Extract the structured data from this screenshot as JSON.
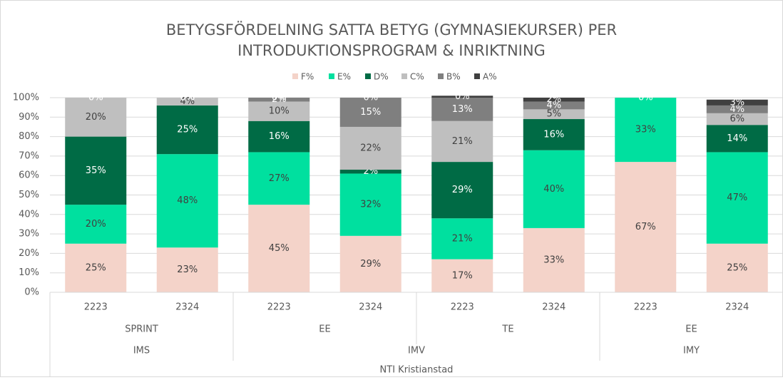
{
  "chart_data": {
    "type": "stacked_bar",
    "title": [
      "BETYGSFÖRDELNING SATTA BETYG (GYMNASIEKURSER) PER",
      "INTRODUKTIONSPROGRAM & INRIKTNING"
    ],
    "categories": [
      "2223",
      "2324",
      "2223",
      "2324",
      "2223",
      "2324",
      "2223",
      "2324"
    ],
    "category_levels": [
      [
        {
          "label": "SPRINT",
          "span": 2
        },
        {
          "label": "EE",
          "span": 2
        },
        {
          "label": "TE",
          "span": 2
        },
        {
          "label": "EE",
          "span": 2
        }
      ],
      [
        {
          "label": "IMS",
          "span": 2
        },
        {
          "label": "IMV",
          "span": 4
        },
        {
          "label": "IMY",
          "span": 2
        }
      ],
      [
        {
          "label": "NTI Kristianstad",
          "span": 8
        }
      ]
    ],
    "series": [
      {
        "name": "F%",
        "color": "#f4d3c9",
        "label_color": "#404040",
        "values": [
          25,
          23,
          45,
          29,
          17,
          33,
          67,
          25
        ],
        "value_labels": [
          "25%",
          "23%",
          "45%",
          "29%",
          "17%",
          "33%",
          "67%",
          "25%"
        ]
      },
      {
        "name": "E%",
        "color": "#00e09f",
        "label_color": "#404040",
        "values": [
          20,
          48,
          27,
          32,
          21,
          40,
          33,
          47
        ],
        "value_labels": [
          "20%",
          "48%",
          "27%",
          "32%",
          "21%",
          "40%",
          "33%",
          "47%"
        ]
      },
      {
        "name": "D%",
        "color": "#006b45",
        "label_color": "#ffffff",
        "values": [
          35,
          25,
          16,
          2,
          29,
          16,
          0,
          14
        ],
        "value_labels": [
          "35%",
          "25%",
          "16%",
          "2%",
          "29%",
          "16%",
          "0%",
          "14%"
        ]
      },
      {
        "name": "C%",
        "color": "#bfbfbf",
        "label_color": "#404040",
        "values": [
          20,
          4,
          10,
          22,
          21,
          5,
          null,
          6
        ],
        "value_labels": [
          "20%",
          "4%",
          "10%",
          "22%",
          "21%",
          "5%",
          null,
          "6%"
        ]
      },
      {
        "name": "B%",
        "color": "#7f7f7f",
        "label_color": "#ffffff",
        "values": [
          0,
          0,
          2,
          15,
          13,
          4,
          null,
          4
        ],
        "value_labels": [
          "0%",
          "0%",
          "2%",
          "15%",
          "13%",
          "4%",
          null,
          "4%"
        ]
      },
      {
        "name": "A%",
        "color": "#404040",
        "label_color": "#ffffff",
        "values": [
          0,
          0,
          0,
          0,
          0,
          2,
          null,
          3
        ],
        "value_labels": [
          "0%",
          "0%",
          "0%",
          "0%",
          "0%",
          "2%",
          null,
          "3%"
        ]
      }
    ],
    "ylim": [
      0,
      100
    ],
    "yticks": [
      {
        "value": 0,
        "label": "0%"
      },
      {
        "value": 10,
        "label": "10%"
      },
      {
        "value": 20,
        "label": "20%"
      },
      {
        "value": 30,
        "label": "30%"
      },
      {
        "value": 40,
        "label": "40%"
      },
      {
        "value": 50,
        "label": "50%"
      },
      {
        "value": 60,
        "label": "60%"
      },
      {
        "value": 70,
        "label": "70%"
      },
      {
        "value": 80,
        "label": "80%"
      },
      {
        "value": 90,
        "label": "90%"
      },
      {
        "value": 100,
        "label": "100%"
      }
    ],
    "grid": true,
    "legend": "top"
  }
}
